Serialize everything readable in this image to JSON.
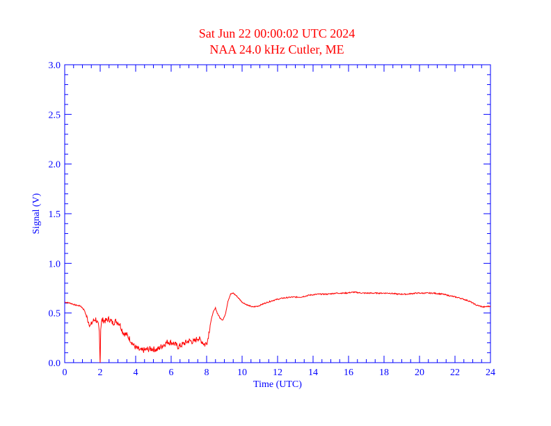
{
  "colors": {
    "title": "#ff0000",
    "axis": "#0000ff",
    "series": "#ff0000",
    "background": "#ffffff"
  },
  "chart_data": {
    "type": "line",
    "title": "Sat Jun 22 00:00:02 UTC 2024",
    "subtitle": "NAA 24.0 kHz Cutler, ME",
    "xlabel": "Time (UTC)",
    "ylabel": "Signal (V)",
    "xlim": [
      0,
      24
    ],
    "ylim": [
      0,
      3.0
    ],
    "xticks": [
      "0",
      "2",
      "4",
      "6",
      "8",
      "10",
      "12",
      "14",
      "16",
      "18",
      "20",
      "22",
      "24"
    ],
    "yticks": [
      "0.0",
      "0.5",
      "1.0",
      "1.5",
      "2.0",
      "2.5",
      "3.0"
    ],
    "grid": false,
    "series": [
      {
        "x": [
          0,
          0.3,
          0.6,
          0.9,
          1.1,
          1.3,
          1.45,
          1.6,
          1.75,
          1.9,
          1.95,
          1.98,
          2.0,
          2.03,
          2.1,
          2.3,
          2.5,
          2.7,
          2.9,
          3.1,
          3.3,
          3.5,
          3.7,
          3.9,
          4.1,
          4.3,
          4.6,
          4.9,
          5.2,
          5.5,
          5.8,
          6.1,
          6.4,
          6.7,
          7.0,
          7.3,
          7.5,
          7.7,
          7.9,
          8.05,
          8.2,
          8.35,
          8.5,
          8.6,
          8.75,
          8.9,
          9.05,
          9.2,
          9.35,
          9.5,
          9.7,
          10.0,
          10.3,
          10.6,
          10.9,
          11.3,
          11.8,
          12.3,
          12.8,
          13.3,
          13.8,
          14.3,
          14.8,
          15.3,
          15.8,
          16.3,
          16.8,
          17.3,
          17.8,
          18.3,
          18.8,
          19.3,
          19.8,
          20.3,
          20.8,
          21.3,
          21.8,
          22.3,
          22.8,
          23.2,
          23.6,
          24.0
        ],
        "y": [
          0.61,
          0.6,
          0.58,
          0.57,
          0.53,
          0.43,
          0.37,
          0.42,
          0.44,
          0.37,
          0.3,
          0.1,
          0.01,
          0.35,
          0.43,
          0.42,
          0.44,
          0.4,
          0.42,
          0.39,
          0.3,
          0.28,
          0.23,
          0.17,
          0.14,
          0.12,
          0.13,
          0.14,
          0.13,
          0.17,
          0.21,
          0.2,
          0.16,
          0.19,
          0.22,
          0.21,
          0.25,
          0.22,
          0.18,
          0.22,
          0.38,
          0.5,
          0.55,
          0.5,
          0.45,
          0.43,
          0.48,
          0.62,
          0.69,
          0.7,
          0.67,
          0.61,
          0.58,
          0.56,
          0.57,
          0.6,
          0.63,
          0.65,
          0.66,
          0.66,
          0.68,
          0.69,
          0.69,
          0.7,
          0.7,
          0.71,
          0.7,
          0.7,
          0.7,
          0.7,
          0.69,
          0.69,
          0.7,
          0.7,
          0.7,
          0.69,
          0.67,
          0.65,
          0.62,
          0.58,
          0.56,
          0.57
        ]
      }
    ]
  }
}
